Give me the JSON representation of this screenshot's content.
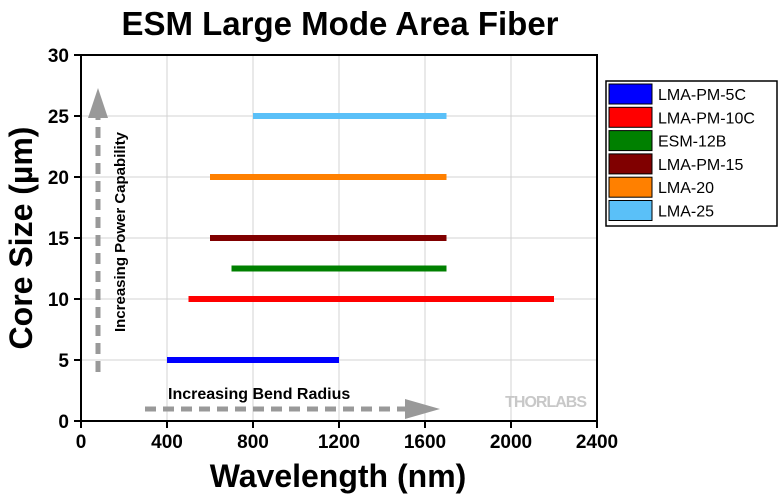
{
  "chart_data": {
    "type": "range-bar",
    "title": "ESM Large Mode Area Fiber",
    "xlabel": "Wavelength (nm)",
    "ylabel": "Core Size (µm)",
    "xlim": [
      0,
      2400
    ],
    "ylim": [
      0,
      30
    ],
    "xticks": [
      "0",
      "400",
      "800",
      "1200",
      "1600",
      "2000",
      "2400"
    ],
    "yticks": [
      "0",
      "5",
      "10",
      "15",
      "20",
      "25",
      "30"
    ],
    "grid": true,
    "legend_position": "right",
    "series": [
      {
        "name": "LMA-PM-5C",
        "color": "#0000ff",
        "core": 5,
        "x": [
          400,
          1200
        ]
      },
      {
        "name": "LMA-PM-10C",
        "color": "#ff0000",
        "core": 10,
        "x": [
          500,
          2200
        ]
      },
      {
        "name": "ESM-12B",
        "color": "#008000",
        "core": 12.5,
        "x": [
          700,
          1700
        ]
      },
      {
        "name": "LMA-PM-15",
        "color": "#800000",
        "core": 15,
        "x": [
          600,
          1700
        ]
      },
      {
        "name": "LMA-20",
        "color": "#ff8000",
        "core": 20,
        "x": [
          600,
          1700
        ]
      },
      {
        "name": "LMA-25",
        "color": "#5ac0f8",
        "core": 25,
        "x": [
          800,
          1700
        ]
      }
    ],
    "annotations": {
      "vertical": "Increasing Power Capability",
      "horizontal": "Increasing Bend Radius"
    },
    "watermark": "THORLABS"
  }
}
